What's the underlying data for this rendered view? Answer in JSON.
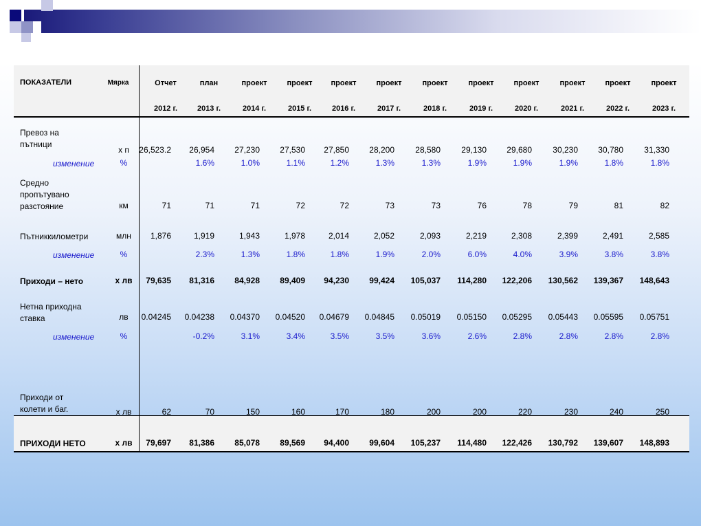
{
  "header": {
    "col0": "ПОКАЗАТЕЛИ",
    "unit": "Мярка"
  },
  "columns": [
    {
      "type": "Отчет",
      "year": "2012 г."
    },
    {
      "type": "план",
      "year": "2013 г."
    },
    {
      "type": "проект",
      "year": "2014 г."
    },
    {
      "type": "проект",
      "year": "2015 г."
    },
    {
      "type": "проект",
      "year": "2016 г."
    },
    {
      "type": "проект",
      "year": "2017 г."
    },
    {
      "type": "проект",
      "year": "2018 г."
    },
    {
      "type": "проект",
      "year": "2019 г."
    },
    {
      "type": "проект",
      "year": "2020 г."
    },
    {
      "type": "проект",
      "year": "2021 г."
    },
    {
      "type": "проект",
      "year": "2022 г."
    },
    {
      "type": "проект",
      "year": "2023 г."
    }
  ],
  "rows": [
    {
      "label": "Превоз на пътници",
      "unit": "х п",
      "values": [
        "26,523.2",
        "26,954",
        "27,230",
        "27,530",
        "27,850",
        "28,200",
        "28,580",
        "29,130",
        "29,680",
        "30,230",
        "30,780",
        "31,330"
      ]
    },
    {
      "label": "изменение",
      "unit": "%",
      "values": [
        "",
        "1.6%",
        "1.0%",
        "1.1%",
        "1.2%",
        "1.3%",
        "1.3%",
        "1.9%",
        "1.9%",
        "1.9%",
        "1.8%",
        "1.8%"
      ]
    },
    {
      "label": "Средно пропътувано разстояние",
      "unit": "км",
      "values": [
        "71",
        "71",
        "71",
        "72",
        "72",
        "73",
        "73",
        "76",
        "78",
        "79",
        "81",
        "82"
      ]
    },
    {
      "label": "Пътниккилометри",
      "unit": "млн",
      "values": [
        "1,876",
        "1,919",
        "1,943",
        "1,978",
        "2,014",
        "2,052",
        "2,093",
        "2,219",
        "2,308",
        "2,399",
        "2,491",
        "2,585"
      ]
    },
    {
      "label": "изменение",
      "unit": "%",
      "values": [
        "",
        "2.3%",
        "1.3%",
        "1.8%",
        "1.8%",
        "1.9%",
        "2.0%",
        "6.0%",
        "4.0%",
        "3.9%",
        "3.8%",
        "3.8%"
      ]
    },
    {
      "label": "Приходи – нето",
      "unit": "х лв",
      "values": [
        "79,635",
        "81,316",
        "84,928",
        "89,409",
        "94,230",
        "99,424",
        "105,037",
        "114,280",
        "122,206",
        "130,562",
        "139,367",
        "148,643"
      ]
    },
    {
      "label": "Нетна приходна ставка",
      "unit": "лв",
      "values": [
        "0.04245",
        "0.04238",
        "0.04370",
        "0.04520",
        "0.04679",
        "0.04845",
        "0.05019",
        "0.05150",
        "0.05295",
        "0.05443",
        "0.05595",
        "0.05751"
      ]
    },
    {
      "label": "изменение",
      "unit": "%",
      "values": [
        "",
        "-0.2%",
        "3.1%",
        "3.4%",
        "3.5%",
        "3.5%",
        "3.6%",
        "2.6%",
        "2.8%",
        "2.8%",
        "2.8%",
        "2.8%"
      ]
    },
    {
      "label": "Приходи от колети и баг.",
      "unit": "х лв",
      "values": [
        "62",
        "70",
        "150",
        "160",
        "170",
        "180",
        "200",
        "200",
        "220",
        "230",
        "240",
        "250"
      ]
    },
    {
      "label": "ПРИХОДИ НЕТО",
      "unit": "х лв",
      "values": [
        "79,697",
        "81,386",
        "85,078",
        "89,569",
        "94,400",
        "99,604",
        "105,237",
        "114,480",
        "122,426",
        "130,792",
        "139,607",
        "148,893"
      ]
    }
  ]
}
